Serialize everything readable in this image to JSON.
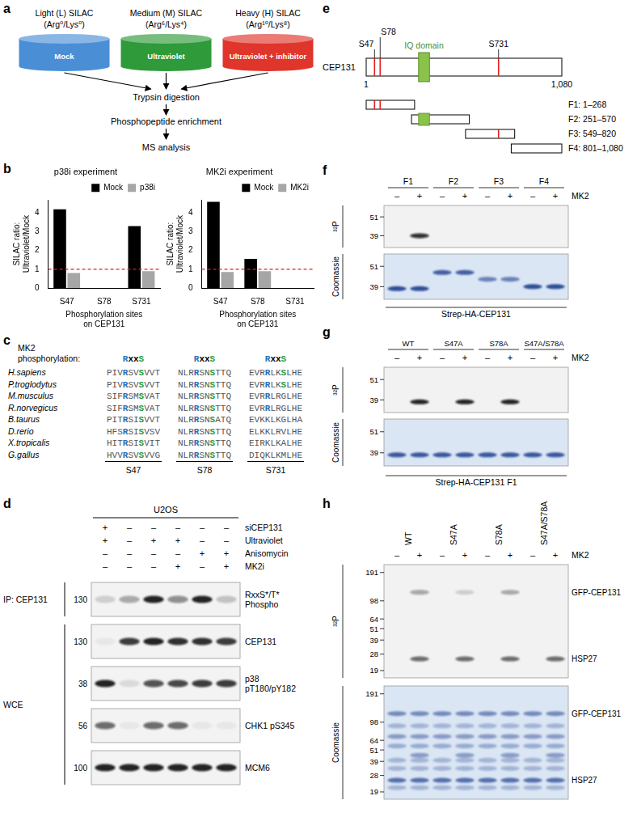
{
  "panel_a": {
    "label": "a",
    "conditions": [
      {
        "title": "Light (L) SILAC",
        "isotopes": "(Arg⁰/Lys⁰)",
        "treatment": "Mock",
        "color": "#4a8fd6"
      },
      {
        "title": "Medium (M) SILAC",
        "isotopes": "(Arg⁶/Lys⁴)",
        "treatment": "Ultraviolet",
        "color": "#2e9a3a"
      },
      {
        "title": "Heavy (H) SILAC",
        "isotopes": "(Arg¹⁰/Lys⁸)",
        "treatment": "Ultraviolet + inhibitor",
        "color": "#e0352b"
      }
    ],
    "steps": [
      "Trypsin digestion",
      "Phosphopeptide enrichment",
      "MS analysis"
    ]
  },
  "panel_b": {
    "label": "b"
  },
  "chart_data": [
    {
      "type": "bar",
      "title": "p38i experiment",
      "categories": [
        "S47",
        "S78",
        "S731"
      ],
      "series": [
        {
          "name": "Mock",
          "color": "#000000",
          "values": [
            4.2,
            null,
            3.3
          ]
        },
        {
          "name": "p38i",
          "color": "#a6a6a6",
          "values": [
            0.8,
            null,
            0.9
          ]
        }
      ],
      "x_label": [
        "Phosphorylation sites",
        "on CEP131"
      ],
      "y_label": [
        "SILAC ratio:",
        "Ultraviolet/Mock"
      ],
      "ylim": [
        0,
        4.7
      ],
      "yticks": [
        0,
        1,
        2,
        3,
        4
      ],
      "threshold": 1,
      "legend": "top-right",
      "grid": false
    },
    {
      "type": "bar",
      "title": "MK2i experiment",
      "categories": [
        "S47",
        "S78",
        "S731"
      ],
      "series": [
        {
          "name": "Mock",
          "color": "#000000",
          "values": [
            4.6,
            1.55,
            null
          ]
        },
        {
          "name": "MK2i",
          "color": "#a6a6a6",
          "values": [
            0.85,
            0.9,
            null
          ]
        }
      ],
      "x_label": [
        "Phosphorylation sites",
        "on CEP131"
      ],
      "y_label": [
        "SILAC ratio:",
        "Ultraviolet/Mock"
      ],
      "ylim": [
        0,
        4.7
      ],
      "yticks": [
        0,
        1,
        2,
        3,
        4
      ],
      "threshold": 1,
      "legend": "top-right",
      "grid": false
    }
  ],
  "panel_c": {
    "label": "c",
    "header": [
      "MK2",
      "phosphorylation:"
    ],
    "motif": "RxxS",
    "species": [
      "H.sapiens",
      "P.troglodytus",
      "M.musculus",
      "R.norvegicus",
      "B.taurus",
      "D.rerio",
      "X.tropicalis",
      "G.gallus"
    ],
    "sites": [
      {
        "name": "S47",
        "sequences": [
          "PIVRSVSVVT",
          "PIVRSVSVVT",
          "SIFRSMSVAT",
          "SIFRSMSVAT",
          "PITRSISVVT",
          "HFSRSISVSV",
          "HITRSISVIT",
          "HVVRSVSVVG"
        ]
      },
      {
        "name": "S78",
        "sequences": [
          "NLRRSNSTTQ",
          "NLRRSNSTTQ",
          "NLRRSNSTTQ",
          "NLRRSNSTTQ",
          "NLRRSNSATQ",
          "NLRRSNSTTQ",
          "NLRRSNSTTQ",
          "NLRRSNSTTQ"
        ]
      },
      {
        "name": "S731",
        "sequences": [
          "EVRRLKSLHE",
          "EVRRLKSLHE",
          "EVRRLRGLHE",
          "EVRRLRGLHE",
          "EVKKLKGLHA",
          "ELKKLRVLHE",
          "EIRKLKALHE",
          "DIQKLKMLHE"
        ]
      }
    ]
  },
  "panel_d": {
    "label": "d",
    "cell_line": "U2OS",
    "conditions": [
      {
        "name": "siCEP131",
        "values": [
          "+",
          "–",
          "–",
          "–",
          "–",
          "–"
        ]
      },
      {
        "name": "Ultraviolet",
        "values": [
          "+",
          "–",
          "+",
          "+",
          "–",
          "–"
        ]
      },
      {
        "name": "Anisomycin",
        "values": [
          "–",
          "–",
          "–",
          "–",
          "+",
          "+"
        ]
      },
      {
        "name": "MK2i",
        "values": [
          "–",
          "–",
          "–",
          "+",
          "–",
          "+"
        ]
      }
    ],
    "groups": [
      {
        "name": "IP: CEP131",
        "rows": [
          0
        ]
      },
      {
        "name": "WCE",
        "rows": [
          1,
          2,
          3,
          4
        ]
      }
    ],
    "blots": [
      {
        "mw": 130,
        "label": [
          "RxxS*/T*",
          "Phospho"
        ],
        "signal": [
          0.15,
          0.3,
          0.9,
          0.45,
          0.9,
          0.2
        ]
      },
      {
        "mw": 130,
        "label": [
          "CEP131"
        ],
        "signal": [
          0.05,
          0.8,
          0.9,
          0.85,
          0.85,
          0.8
        ]
      },
      {
        "mw": 38,
        "label": [
          "p38",
          "pT180/pY182"
        ],
        "signal": [
          0.9,
          0.1,
          0.7,
          0.75,
          0.8,
          0.8
        ]
      },
      {
        "mw": 56,
        "label": [
          "CHK1 pS345"
        ],
        "signal": [
          0.6,
          0.05,
          0.6,
          0.6,
          0.05,
          0.05
        ]
      },
      {
        "mw": 100,
        "label": [
          "MCM6"
        ],
        "signal": [
          0.9,
          0.9,
          0.9,
          0.9,
          0.9,
          0.9
        ]
      }
    ]
  },
  "panel_e": {
    "label": "e",
    "protein": "CEP131",
    "ends": [
      1,
      {
        "value": 1080,
        "label": "1,080"
      }
    ],
    "sites": [
      {
        "name": "S47",
        "position": 47
      },
      {
        "name": "S78",
        "position": 78
      },
      {
        "name": "S731",
        "position": 731
      }
    ],
    "domain": {
      "name": "IQ domain",
      "start": 290,
      "end": 350
    },
    "fragments": [
      {
        "label": "F1: 1–268",
        "start": 1,
        "end": 268
      },
      {
        "label": "F2: 251–570",
        "start": 251,
        "end": 570
      },
      {
        "label": "F3: 549–820",
        "start": 549,
        "end": 820
      },
      {
        "label": "F4: 801–1,080",
        "start": 801,
        "end": 1080
      }
    ]
  },
  "panel_f": {
    "label": "f",
    "lane_groups": [
      "F1",
      "F2",
      "F3",
      "F4"
    ],
    "treatment": "MK2",
    "treatment_values": [
      "–",
      "+",
      "–",
      "+",
      "–",
      "+",
      "–",
      "+"
    ],
    "gels": [
      {
        "name": "³²P",
        "kda_range": [
          60,
          33
        ],
        "markers": [
          51,
          39
        ],
        "bands": [
          {
            "lanes": [
              1
            ],
            "kda": 39,
            "signal": 0.85
          }
        ]
      },
      {
        "name": "Coomassie",
        "kda_range": [
          60,
          33
        ],
        "markers": [
          51,
          39
        ],
        "bands": [
          {
            "lanes": [
              0,
              1
            ],
            "kda": 38,
            "signal": 0.9
          },
          {
            "lanes": [
              2,
              3
            ],
            "kda": 47,
            "signal": 0.8
          },
          {
            "lanes": [
              4,
              5
            ],
            "kda": 43,
            "signal": 0.6
          },
          {
            "lanes": [
              6,
              7
            ],
            "kda": 39,
            "signal": 0.9
          }
        ]
      }
    ],
    "sample": "Strep-HA-CEP131"
  },
  "panel_g": {
    "label": "g",
    "lane_groups": [
      "WT",
      "S47A",
      "S78A",
      "S47A/S78A"
    ],
    "treatment": "MK2",
    "treatment_values": [
      "–",
      "+",
      "–",
      "+",
      "–",
      "+",
      "–",
      "+"
    ],
    "gels": [
      {
        "name": "³²P",
        "kda_range": [
          60,
          33
        ],
        "markers": [
          51,
          39
        ],
        "bands": [
          {
            "lanes": [
              1,
              3,
              5
            ],
            "kda": 38,
            "signal": 0.9
          }
        ]
      },
      {
        "name": "Coomassie",
        "kda_range": [
          60,
          33
        ],
        "markers": [
          51,
          39
        ],
        "bands": [
          {
            "lanes": [
              0,
              1,
              2,
              3,
              4,
              5,
              6,
              7
            ],
            "kda": 38,
            "signal": 0.85
          }
        ]
      }
    ],
    "sample": "Strep-HA-CEP131 F1"
  },
  "panel_h": {
    "label": "h",
    "lane_groups": [
      "WT",
      "S47A",
      "S78A",
      "S47A/S78A"
    ],
    "treatment": "MK2",
    "treatment_values": [
      "–",
      "+",
      "–",
      "+",
      "–",
      "+",
      "–",
      "+"
    ],
    "gels": [
      {
        "name": "³²P",
        "kda_range": [
          230,
          16
        ],
        "markers": [
          191,
          98,
          64,
          51,
          39,
          28,
          19
        ],
        "bands": [
          {
            "lanes": [
              1
            ],
            "kda": 120,
            "signal": 0.35
          },
          {
            "lanes": [
              3
            ],
            "kda": 120,
            "signal": 0.15
          },
          {
            "lanes": [
              5
            ],
            "kda": 120,
            "signal": 0.3
          },
          {
            "lanes": [
              1,
              3,
              5,
              7
            ],
            "kda": 25,
            "signal": 0.6
          }
        ],
        "labels": [
          {
            "text": "GFP-CEP131",
            "kda": 120
          },
          {
            "text": "HSP27",
            "kda": 25
          }
        ]
      },
      {
        "name": "Coomassie",
        "kda_range": [
          230,
          16
        ],
        "markers": [
          191,
          98,
          64,
          51,
          39,
          28,
          19
        ],
        "bands": [
          {
            "lanes": [
              0,
              1,
              2,
              3,
              4,
              5,
              6,
              7
            ],
            "kda": 120,
            "signal": 0.55
          },
          {
            "lanes": [
              0,
              1,
              2,
              3,
              4,
              5,
              6,
              7
            ],
            "kda": 90,
            "signal": 0.3
          },
          {
            "lanes": [
              0,
              1,
              2,
              3,
              4,
              5,
              6,
              7
            ],
            "kda": 70,
            "signal": 0.45
          },
          {
            "lanes": [
              0,
              1,
              2,
              3,
              4,
              5,
              6,
              7
            ],
            "kda": 56,
            "signal": 0.35
          },
          {
            "lanes": [
              1,
              3,
              5,
              7
            ],
            "kda": 45,
            "signal": 0.45
          },
          {
            "lanes": [
              0,
              1,
              2,
              3,
              4,
              5,
              6,
              7
            ],
            "kda": 40,
            "signal": 0.3
          },
          {
            "lanes": [
              0,
              1,
              2,
              3,
              4,
              5,
              6,
              7
            ],
            "kda": 33,
            "signal": 0.3
          },
          {
            "lanes": [
              0,
              1,
              2,
              3,
              4,
              5,
              6,
              7
            ],
            "kda": 25,
            "signal": 0.7
          },
          {
            "lanes": [
              0,
              1,
              2,
              3,
              4,
              5,
              6,
              7
            ],
            "kda": 21,
            "signal": 0.3
          }
        ],
        "labels": [
          {
            "text": "GFP-CEP131",
            "kda": 120
          },
          {
            "text": "HSP27",
            "kda": 25
          }
        ]
      }
    ]
  }
}
